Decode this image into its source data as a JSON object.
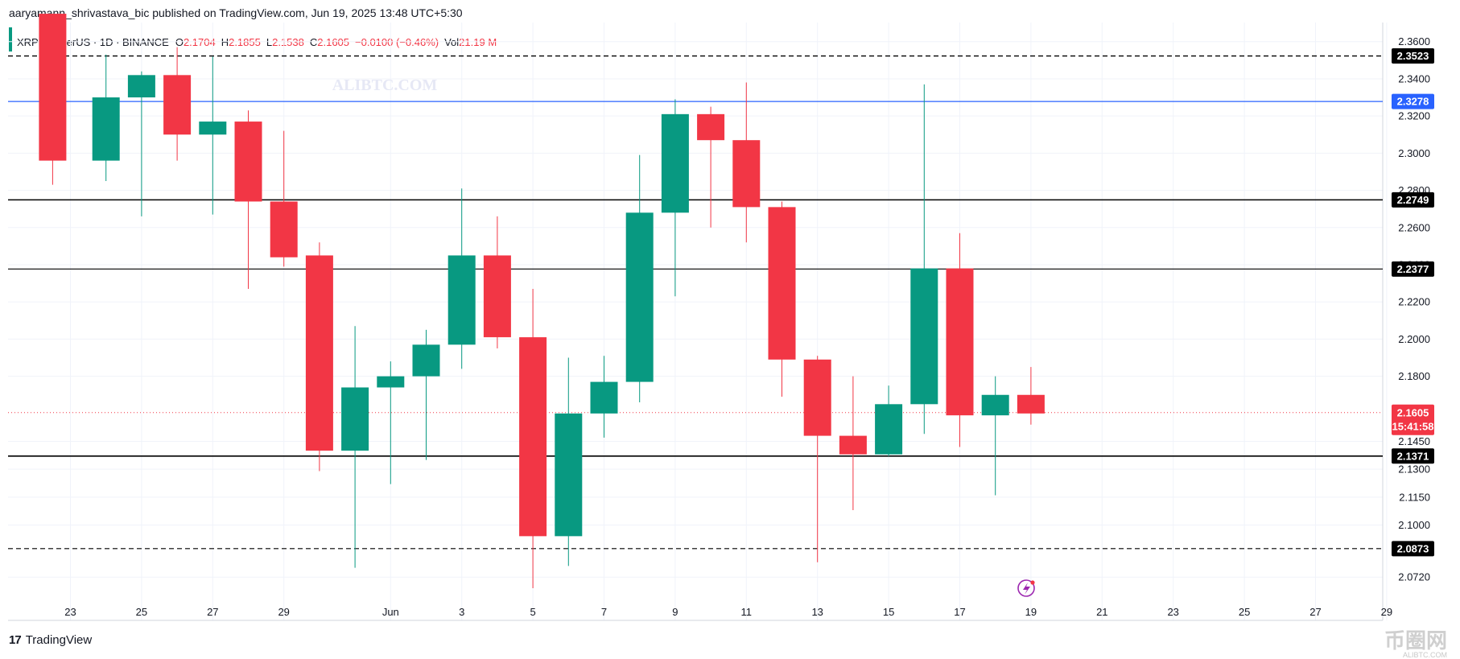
{
  "header": {
    "publish_line": "aaryamann_shrivastava_bic published on TradingView.com, Jun 19, 2025 13:48 UTC+5:30"
  },
  "legend": {
    "symbol": "XRP / TetherUS · 1D · BINANCE",
    "open_label": "O",
    "open": "2.1704",
    "high_label": "H",
    "high": "2.1855",
    "low_label": "L",
    "low": "2.1538",
    "close_label": "C",
    "close": "2.1605",
    "change": "−0.0100 (−0.46%)",
    "vol_label": "Vol",
    "vol": "21.19 M"
  },
  "watermark": "ALIBTC.COM",
  "footer": {
    "brand": "TradingView",
    "logo": "17"
  },
  "corner_watermark": {
    "text": "币圈网",
    "sub": "ALIBTC.COM"
  },
  "colors": {
    "up": "#089981",
    "down": "#f23645",
    "grid": "#f0f3fa",
    "level": "#000000",
    "blue_line": "#2962ff",
    "last_price": "#f23645"
  },
  "chart_data": {
    "type": "candlestick",
    "ylim": [
      2.062,
      2.372
    ],
    "y_ticks": [
      {
        "value": 2.36,
        "label": "2.3600"
      },
      {
        "value": 2.34,
        "label": "2.3400"
      },
      {
        "value": 2.32,
        "label": "2.3200"
      },
      {
        "value": 2.3,
        "label": "2.3000"
      },
      {
        "value": 2.28,
        "label": "2.2800"
      },
      {
        "value": 2.26,
        "label": "2.2600"
      },
      {
        "value": 2.24,
        "label": "2.2400"
      },
      {
        "value": 2.22,
        "label": "2.2200"
      },
      {
        "value": 2.2,
        "label": "2.2000"
      },
      {
        "value": 2.18,
        "label": "2.1800"
      },
      {
        "value": 2.145,
        "label": "2.1450"
      },
      {
        "value": 2.13,
        "label": "2.1300"
      },
      {
        "value": 2.115,
        "label": "2.1150"
      },
      {
        "value": 2.1,
        "label": "2.1000"
      },
      {
        "value": 2.072,
        "label": "2.0720"
      }
    ],
    "x_ticks": [
      {
        "day": 0,
        "label": "23"
      },
      {
        "day": 2,
        "label": "25"
      },
      {
        "day": 4,
        "label": "27"
      },
      {
        "day": 6,
        "label": "29"
      },
      {
        "day": 9,
        "label": "Jun"
      },
      {
        "day": 11,
        "label": "3"
      },
      {
        "day": 13,
        "label": "5"
      },
      {
        "day": 15,
        "label": "7"
      },
      {
        "day": 17,
        "label": "9"
      },
      {
        "day": 19,
        "label": "11"
      },
      {
        "day": 21,
        "label": "13"
      },
      {
        "day": 23,
        "label": "15"
      },
      {
        "day": 25,
        "label": "17"
      },
      {
        "day": 27,
        "label": "19"
      },
      {
        "day": 29,
        "label": "21"
      },
      {
        "day": 31,
        "label": "23"
      },
      {
        "day": 33,
        "label": "25"
      },
      {
        "day": 35,
        "label": "27"
      },
      {
        "day": 37,
        "label": "29"
      }
    ],
    "candles": [
      {
        "day": -0.5,
        "o": 2.375,
        "h": 2.375,
        "l": 2.283,
        "c": 2.296
      },
      {
        "day": 1,
        "o": 2.296,
        "h": 2.353,
        "l": 2.285,
        "c": 2.33
      },
      {
        "day": 2,
        "o": 2.33,
        "h": 2.344,
        "l": 2.266,
        "c": 2.342
      },
      {
        "day": 3,
        "o": 2.342,
        "h": 2.357,
        "l": 2.296,
        "c": 2.31
      },
      {
        "day": 4,
        "o": 2.31,
        "h": 2.352,
        "l": 2.267,
        "c": 2.317
      },
      {
        "day": 5,
        "o": 2.317,
        "h": 2.323,
        "l": 2.227,
        "c": 2.274
      },
      {
        "day": 6,
        "o": 2.274,
        "h": 2.312,
        "l": 2.239,
        "c": 2.244
      },
      {
        "day": 7,
        "o": 2.245,
        "h": 2.252,
        "l": 2.129,
        "c": 2.14
      },
      {
        "day": 8,
        "o": 2.14,
        "h": 2.207,
        "l": 2.077,
        "c": 2.174
      },
      {
        "day": 9,
        "o": 2.174,
        "h": 2.188,
        "l": 2.122,
        "c": 2.18
      },
      {
        "day": 10,
        "o": 2.18,
        "h": 2.205,
        "l": 2.135,
        "c": 2.197
      },
      {
        "day": 11,
        "o": 2.197,
        "h": 2.281,
        "l": 2.184,
        "c": 2.245
      },
      {
        "day": 12,
        "o": 2.245,
        "h": 2.266,
        "l": 2.195,
        "c": 2.201
      },
      {
        "day": 13,
        "o": 2.201,
        "h": 2.227,
        "l": 2.066,
        "c": 2.094
      },
      {
        "day": 14,
        "o": 2.094,
        "h": 2.19,
        "l": 2.078,
        "c": 2.16
      },
      {
        "day": 15,
        "o": 2.16,
        "h": 2.191,
        "l": 2.147,
        "c": 2.177
      },
      {
        "day": 16,
        "o": 2.177,
        "h": 2.299,
        "l": 2.166,
        "c": 2.268
      },
      {
        "day": 17,
        "o": 2.268,
        "h": 2.329,
        "l": 2.223,
        "c": 2.321
      },
      {
        "day": 18,
        "o": 2.321,
        "h": 2.325,
        "l": 2.26,
        "c": 2.307
      },
      {
        "day": 19,
        "o": 2.307,
        "h": 2.338,
        "l": 2.252,
        "c": 2.271
      },
      {
        "day": 20,
        "o": 2.271,
        "h": 2.274,
        "l": 2.169,
        "c": 2.189
      },
      {
        "day": 21,
        "o": 2.189,
        "h": 2.191,
        "l": 2.08,
        "c": 2.148
      },
      {
        "day": 22,
        "o": 2.148,
        "h": 2.18,
        "l": 2.108,
        "c": 2.138
      },
      {
        "day": 23,
        "o": 2.138,
        "h": 2.175,
        "l": 2.137,
        "c": 2.165
      },
      {
        "day": 24,
        "o": 2.165,
        "h": 2.337,
        "l": 2.149,
        "c": 2.238
      },
      {
        "day": 25,
        "o": 2.238,
        "h": 2.257,
        "l": 2.142,
        "c": 2.159
      },
      {
        "day": 26,
        "o": 2.159,
        "h": 2.18,
        "l": 2.116,
        "c": 2.17
      },
      {
        "day": 27,
        "o": 2.17,
        "h": 2.185,
        "l": 2.154,
        "c": 2.16
      }
    ],
    "levels": [
      {
        "value": 2.3523,
        "label": "2.3523",
        "style": "dashed",
        "color": "#000000",
        "width": 1.4
      },
      {
        "value": 2.3278,
        "label": "2.3278",
        "style": "solid",
        "color": "#2962ff",
        "width": 1.2
      },
      {
        "value": 2.2749,
        "label": "2.2749",
        "style": "solid",
        "color": "#000000",
        "width": 1.6
      },
      {
        "value": 2.2377,
        "label": "2.2377",
        "style": "solid",
        "color": "#000000",
        "width": 1.1
      },
      {
        "value": 2.1371,
        "label": "2.1371",
        "style": "solid",
        "color": "#000000",
        "width": 1.6
      },
      {
        "value": 2.0873,
        "label": "2.0873",
        "style": "dashed",
        "color": "#000000",
        "width": 1.1
      }
    ],
    "last_price": {
      "value": 2.1605,
      "label": "2.1605",
      "countdown": "15:41:58"
    }
  }
}
